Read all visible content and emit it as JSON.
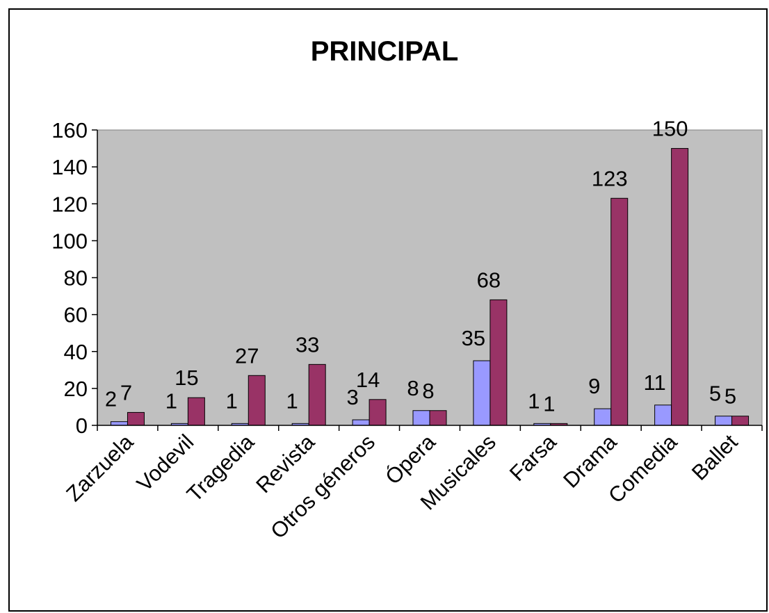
{
  "chart_data": {
    "type": "bar",
    "title": "PRINCIPAL",
    "xlabel": "",
    "ylabel": "",
    "ylim": [
      0,
      160
    ],
    "yticks": [
      0,
      20,
      40,
      60,
      80,
      100,
      120,
      140,
      160
    ],
    "grid": false,
    "legend": "none",
    "categories": [
      "Zarzuela",
      "Vodevil",
      "Tragedia",
      "Revista",
      "Otros géneros",
      "Ópera",
      "Musicales",
      "Farsa",
      "Drama",
      "Comedia",
      "Ballet"
    ],
    "series": [
      {
        "values": [
          2,
          1,
          1,
          1,
          3,
          8,
          35,
          1,
          9,
          11,
          5
        ],
        "color": "#9999ff"
      },
      {
        "values": [
          7,
          15,
          27,
          33,
          14,
          8,
          68,
          1,
          123,
          150,
          5
        ],
        "color": "#993366"
      }
    ],
    "plot_background": "#c0c0c0"
  }
}
